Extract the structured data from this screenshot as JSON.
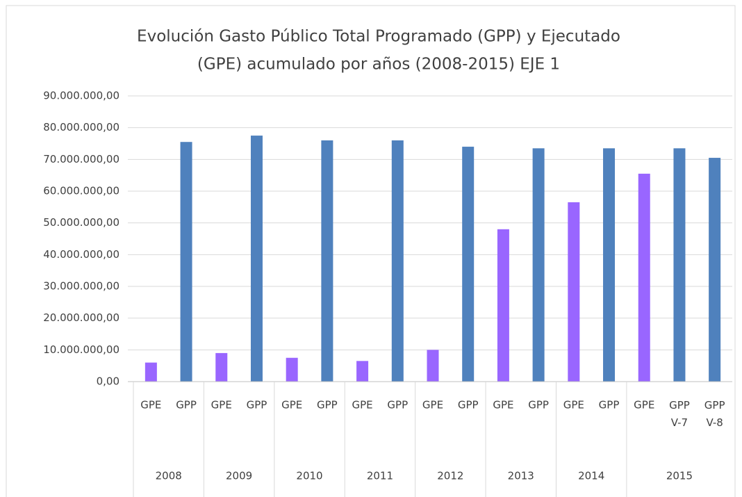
{
  "chart_data": {
    "type": "bar",
    "title": [
      "Evolución Gasto Público Total Programado (GPP) y Ejecutado",
      "(GPE) acumulado por años  (2008-2015)  EJE 1"
    ],
    "categories": [
      "GPE",
      "GPP",
      "GPE",
      "GPP",
      "GPE",
      "GPP",
      "GPE",
      "GPP",
      "GPE",
      "GPP",
      "GPE",
      "GPP",
      "GPE",
      "GPP",
      "GPE",
      "GPP V-7",
      "GPP V-8"
    ],
    "groups": [
      {
        "label": "2008",
        "span": 2
      },
      {
        "label": "2009",
        "span": 2
      },
      {
        "label": "2010",
        "span": 2
      },
      {
        "label": "2011",
        "span": 2
      },
      {
        "label": "2012",
        "span": 2
      },
      {
        "label": "2013",
        "span": 2
      },
      {
        "label": "2014",
        "span": 2
      },
      {
        "label": "2015",
        "span": 3
      }
    ],
    "values": [
      6000000,
      75500000,
      9000000,
      77500000,
      7500000,
      76000000,
      6500000,
      76000000,
      10000000,
      74000000,
      48000000,
      73500000,
      56500000,
      73500000,
      65500000,
      73500000,
      70500000
    ],
    "colors": [
      "#9966ff",
      "#4f81bd",
      "#9966ff",
      "#4f81bd",
      "#9966ff",
      "#4f81bd",
      "#9966ff",
      "#4f81bd",
      "#9966ff",
      "#4f81bd",
      "#9966ff",
      "#4f81bd",
      "#9966ff",
      "#4f81bd",
      "#9966ff",
      "#4f81bd",
      "#4f81bd"
    ],
    "ylim": [
      0,
      90000000
    ],
    "yticks": [
      {
        "value": 0,
        "label": "0,00"
      },
      {
        "value": 10000000,
        "label": "10.000.000,00"
      },
      {
        "value": 20000000,
        "label": "20.000.000,00"
      },
      {
        "value": 30000000,
        "label": "30.000.000,00"
      },
      {
        "value": 40000000,
        "label": "40.000.000,00"
      },
      {
        "value": 50000000,
        "label": "50.000.000,00"
      },
      {
        "value": 60000000,
        "label": "60.000.000,00"
      },
      {
        "value": 70000000,
        "label": "70.000.000,00"
      },
      {
        "value": 80000000,
        "label": "80.000.000,00"
      },
      {
        "value": 90000000,
        "label": "90.000.000,00"
      }
    ],
    "grid": true
  }
}
